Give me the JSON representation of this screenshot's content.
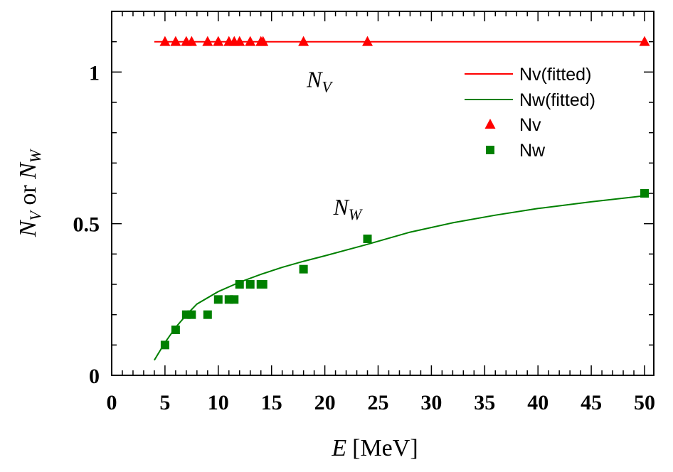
{
  "chart_data": {
    "type": "scatter",
    "title": "",
    "xlabel": {
      "var": "E",
      "unit": "[MeV]"
    },
    "ylabel": {
      "left": "N",
      "left_sub": "V",
      "mid": " or ",
      "right": "N",
      "right_sub": "W"
    },
    "xlim": [
      0,
      50.5
    ],
    "ylim": [
      0,
      1.2
    ],
    "x_ticks": [
      0,
      5,
      10,
      15,
      20,
      25,
      30,
      35,
      40,
      45,
      50
    ],
    "y_ticks": [
      0,
      0.5,
      1
    ],
    "y_tick_labels": [
      "0",
      "0.5",
      "1"
    ],
    "legend_position": "top-right",
    "annotations": [
      {
        "text": "N",
        "sub": "V",
        "x": 18.3,
        "y": 0.95
      },
      {
        "text": "N",
        "sub": "W",
        "x": 20.8,
        "y": 0.53
      }
    ],
    "series": [
      {
        "name": "Nv(fitted)",
        "kind": "line",
        "color": "#ff0000",
        "x": [
          4,
          50
        ],
        "y": [
          1.1,
          1.1
        ]
      },
      {
        "name": "Nw(fitted)",
        "kind": "line",
        "color": "#008000",
        "x": [
          4,
          5,
          6,
          7,
          8,
          10,
          12,
          14,
          16,
          18,
          20,
          24,
          28,
          32,
          36,
          40,
          45,
          50
        ],
        "y": [
          0.05,
          0.108,
          0.158,
          0.199,
          0.235,
          0.276,
          0.307,
          0.333,
          0.356,
          0.376,
          0.394,
          0.432,
          0.472,
          0.503,
          0.528,
          0.55,
          0.572,
          0.592
        ]
      },
      {
        "name": "Nv",
        "kind": "marker",
        "marker": "triangle",
        "color": "#ff0000",
        "x": [
          5,
          6,
          7,
          7.5,
          9,
          10,
          11,
          11.5,
          12,
          13,
          14,
          14.2,
          18,
          24,
          50
        ],
        "y": [
          1.1,
          1.1,
          1.1,
          1.1,
          1.1,
          1.1,
          1.1,
          1.1,
          1.1,
          1.1,
          1.1,
          1.1,
          1.1,
          1.1,
          1.1
        ]
      },
      {
        "name": "Nw",
        "kind": "marker",
        "marker": "square",
        "color": "#008000",
        "x": [
          5,
          6,
          7,
          7.5,
          9,
          10,
          11,
          11.5,
          12,
          13,
          14,
          14.2,
          18,
          24,
          50
        ],
        "y": [
          0.1,
          0.15,
          0.2,
          0.2,
          0.2,
          0.25,
          0.25,
          0.25,
          0.3,
          0.3,
          0.3,
          0.3,
          0.35,
          0.45,
          0.6
        ]
      }
    ]
  }
}
